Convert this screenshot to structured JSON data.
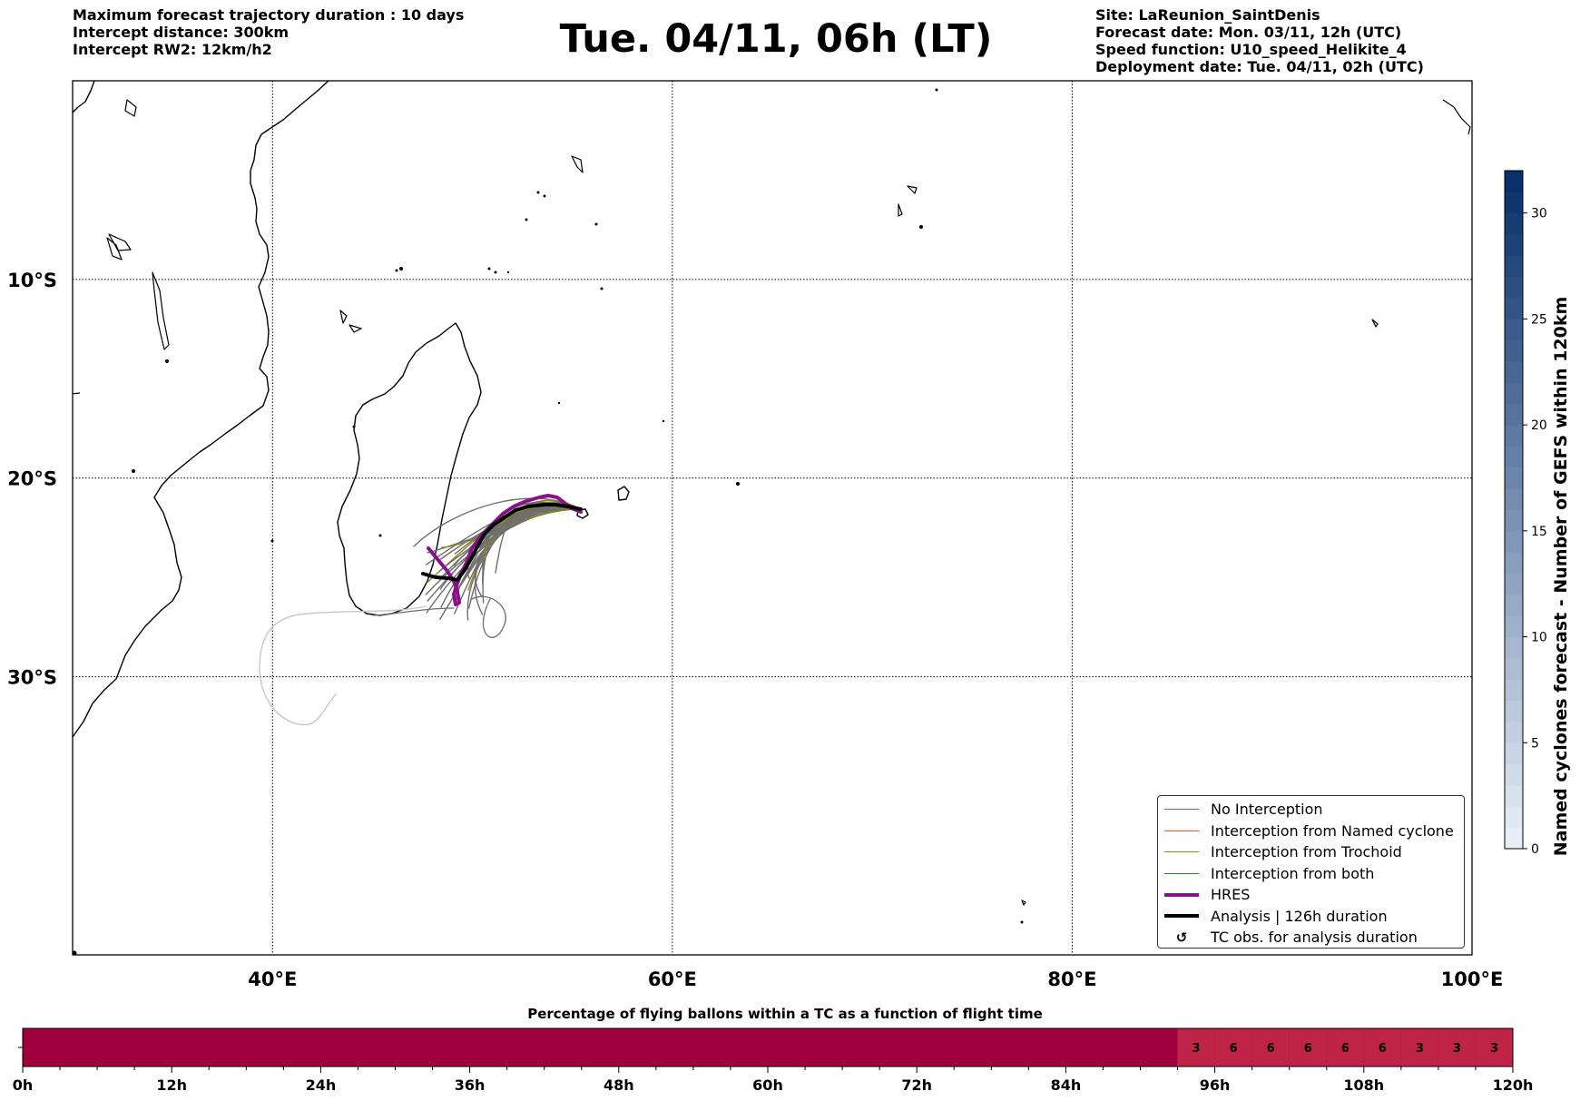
{
  "header_left": [
    "Maximum forecast trajectory duration : 10 days",
    "Intercept distance: 300km",
    "Intercept RW2: 12km/h2"
  ],
  "title": "Tue. 04/11, 06h (LT)",
  "header_right": [
    "Site: LaReunion_SaintDenis",
    "Forecast date: Mon. 03/11, 12h (UTC)",
    "Speed function: U10_speed_Helikite_4",
    "Deployment date: Tue. 04/11, 02h (UTC)"
  ],
  "map": {
    "lon_range": [
      30,
      100
    ],
    "lat_range": [
      -44,
      0
    ],
    "lon_ticks": [
      {
        "lon": 40,
        "label": "40°E"
      },
      {
        "lon": 60,
        "label": "60°E"
      },
      {
        "lon": 80,
        "label": "80°E"
      },
      {
        "lon": 100,
        "label": "100°E"
      }
    ],
    "lat_ticks": [
      {
        "lat": -10,
        "label": "10°S"
      },
      {
        "lat": -20,
        "label": "20°S"
      },
      {
        "lat": -30,
        "label": "30°S"
      }
    ],
    "gridlines": true,
    "colors": {
      "no_interception": "#6e6e6e",
      "named_cyclone": "#ff5a1f",
      "trochoid": "#8c8c14",
      "both": "#1a9a1a",
      "hres": "#8a118a",
      "analysis": "#000000",
      "long_track": "#c8c8c8"
    }
  },
  "legend": {
    "placement": "lower-right",
    "entries": [
      {
        "label": "No Interception",
        "kind": "line",
        "color": "#6e6e6e",
        "width": 1.2
      },
      {
        "label": "Interception from Named cyclone",
        "kind": "line",
        "color": "#ff5a1f",
        "width": 1.2
      },
      {
        "label": "Interception from Trochoid",
        "kind": "line",
        "color": "#8c8c14",
        "width": 1.2
      },
      {
        "label": "Interception from both",
        "kind": "line",
        "color": "#1a9a1a",
        "width": 1.2
      },
      {
        "label": "HRES",
        "kind": "line",
        "color": "#8a118a",
        "width": 4
      },
      {
        "label": "Analysis | 126h duration",
        "kind": "line",
        "color": "#000000",
        "width": 4
      },
      {
        "label": "TC obs. for analysis duration",
        "kind": "symbol",
        "symbol": "↺"
      }
    ]
  },
  "colorbar": {
    "label": "Named cyclones forecast - Number of GEFS within 120km",
    "min": 0,
    "max": 32,
    "ticks": [
      0,
      5,
      10,
      15,
      20,
      25,
      30
    ],
    "color_low": "#e6eef8",
    "color_high": "#08306b"
  },
  "timeline": {
    "title": "Percentage of flying ballons within a TC as a function of flight time",
    "ticks": [
      "0h",
      "12h",
      "24h",
      "36h",
      "48h",
      "60h",
      "72h",
      "84h",
      "96h",
      "108h",
      "120h"
    ],
    "max_hours": 120,
    "base_color": "#a0003c",
    "cell_color": "#bf2346",
    "cells": [
      {
        "start": 93,
        "end": 96,
        "value": "3"
      },
      {
        "start": 96,
        "end": 99,
        "value": "6"
      },
      {
        "start": 99,
        "end": 102,
        "value": "6"
      },
      {
        "start": 102,
        "end": 105,
        "value": "6"
      },
      {
        "start": 105,
        "end": 108,
        "value": "6"
      },
      {
        "start": 108,
        "end": 111,
        "value": "6"
      },
      {
        "start": 111,
        "end": 114,
        "value": "3"
      },
      {
        "start": 114,
        "end": 117,
        "value": "3"
      },
      {
        "start": 117,
        "end": 120,
        "value": "3"
      }
    ]
  }
}
